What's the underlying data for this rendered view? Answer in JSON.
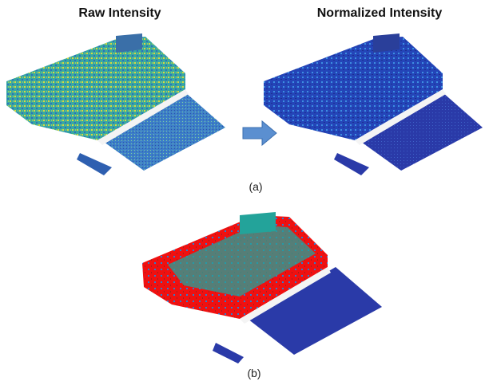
{
  "titles": {
    "raw": "Raw Intensity",
    "normalized": "Normalized Intensity"
  },
  "captions": {
    "a": "(a)",
    "b": "(b)"
  }
}
